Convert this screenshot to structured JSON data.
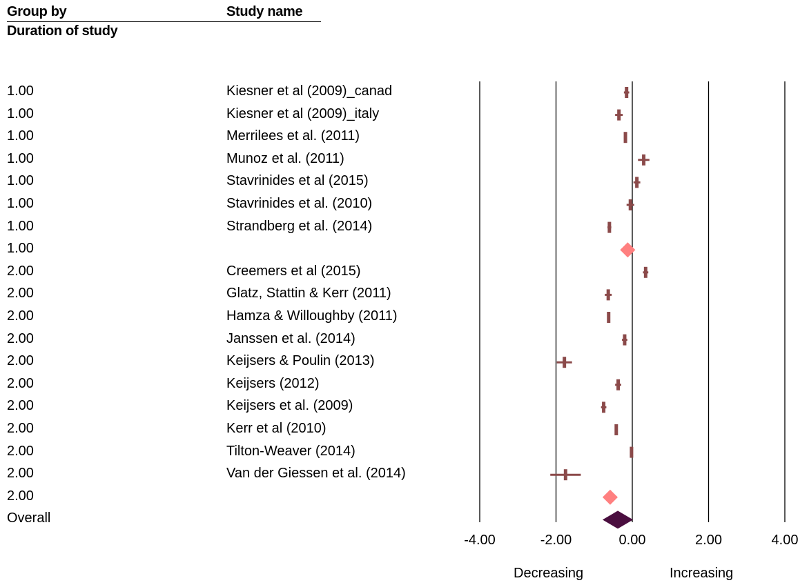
{
  "headers": {
    "group_by": "Group by",
    "study_name": "Study name",
    "subgroup": "Duration of study"
  },
  "chart_data": {
    "type": "forest",
    "xlim": [
      -4,
      4
    ],
    "x_ticks": [
      "-4.00",
      "-2.00",
      "0.00",
      "2.00",
      "4.00"
    ],
    "x_tick_values": [
      -4,
      -2,
      0,
      2,
      4
    ],
    "direction_left": "Decreasing",
    "direction_right": "Increasing",
    "colors": {
      "study": "#8b4a4a",
      "subgroup": "#ff8080",
      "overall": "#4a0e3f"
    },
    "rows": [
      {
        "group": "1.00",
        "study": "Kiesner et al (2009)_canad",
        "kind": "study",
        "est": -0.15,
        "lo": -0.22,
        "hi": -0.08
      },
      {
        "group": "1.00",
        "study": "Kiesner et al (2009)_italy",
        "kind": "study",
        "est": -0.35,
        "lo": -0.45,
        "hi": -0.25
      },
      {
        "group": "1.00",
        "study": "Merrilees et al. (2011)",
        "kind": "study",
        "est": -0.18,
        "lo": -0.22,
        "hi": -0.14
      },
      {
        "group": "1.00",
        "study": "Munoz et al. (2011)",
        "kind": "study",
        "est": 0.3,
        "lo": 0.15,
        "hi": 0.45
      },
      {
        "group": "1.00",
        "study": "Stavrinides et al (2015)",
        "kind": "study",
        "est": 0.12,
        "lo": 0.03,
        "hi": 0.21
      },
      {
        "group": "1.00",
        "study": "Stavrinides et al. (2010)",
        "kind": "study",
        "est": -0.05,
        "lo": -0.15,
        "hi": 0.05
      },
      {
        "group": "1.00",
        "study": "Strandberg et al. (2014)",
        "kind": "study",
        "est": -0.6,
        "lo": -0.65,
        "hi": -0.55
      },
      {
        "group": "1.00",
        "study": "",
        "kind": "subgroup",
        "est": -0.12,
        "lo": -0.32,
        "hi": 0.08
      },
      {
        "group": "2.00",
        "study": "Creemers et al (2015)",
        "kind": "study",
        "est": 0.35,
        "lo": 0.28,
        "hi": 0.42
      },
      {
        "group": "2.00",
        "study": "Glatz, Stattin & Kerr (2011)",
        "kind": "study",
        "est": -0.63,
        "lo": -0.72,
        "hi": -0.54
      },
      {
        "group": "2.00",
        "study": "Hamza & Willoughby (2011)",
        "kind": "study",
        "est": -0.62,
        "lo": -0.66,
        "hi": -0.58
      },
      {
        "group": "2.00",
        "study": "Janssen et al. (2014)",
        "kind": "study",
        "est": -0.2,
        "lo": -0.27,
        "hi": -0.13
      },
      {
        "group": "2.00",
        "study": "Keijsers & Poulin (2013)",
        "kind": "study",
        "est": -1.78,
        "lo": -1.98,
        "hi": -1.58
      },
      {
        "group": "2.00",
        "study": "Keijsers (2012)",
        "kind": "study",
        "est": -0.37,
        "lo": -0.45,
        "hi": -0.29
      },
      {
        "group": "2.00",
        "study": "Keijsers et al. (2009)",
        "kind": "study",
        "est": -0.75,
        "lo": -0.82,
        "hi": -0.68
      },
      {
        "group": "2.00",
        "study": "Kerr et al (2010)",
        "kind": "study",
        "est": -0.42,
        "lo": -0.44,
        "hi": -0.4
      },
      {
        "group": "2.00",
        "study": "Tilton-Weaver (2014)",
        "kind": "study",
        "est": -0.02,
        "lo": -0.05,
        "hi": 0.01
      },
      {
        "group": "2.00",
        "study": "Van der Giessen et al. (2014)",
        "kind": "study",
        "est": -1.75,
        "lo": -2.15,
        "hi": -1.35
      },
      {
        "group": "2.00",
        "study": "",
        "kind": "subgroup",
        "est": -0.58,
        "lo": -0.78,
        "hi": -0.38
      },
      {
        "group": "Overall",
        "study": "",
        "kind": "overall",
        "est": -0.38,
        "lo": -0.78,
        "hi": 0.02
      }
    ]
  }
}
